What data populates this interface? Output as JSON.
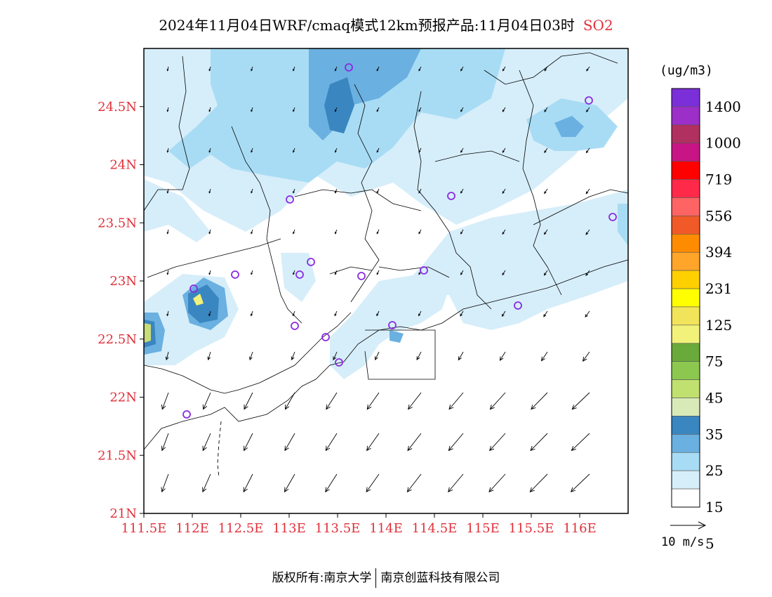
{
  "title": {
    "main": "2024年11月04日WRF/cmaq模式12km预报产品:11月04日03时",
    "species": "SO2"
  },
  "map": {
    "lat_ticks": [
      "24.5N",
      "24N",
      "23.5N",
      "23N",
      "22.5N",
      "22N",
      "21.5N",
      "21N"
    ],
    "lon_ticks": [
      "111.5E",
      "112E",
      "112.5E",
      "113E",
      "113.5E",
      "114E",
      "114.5E",
      "115E",
      "115.5E",
      "116E"
    ],
    "lat_range": [
      21.0,
      25.0
    ],
    "lon_range": [
      111.5,
      116.5
    ],
    "axis_label_color": "#e0303a",
    "stations_marker_color": "#8a2be2"
  },
  "legend": {
    "unit": "(ug/m3)",
    "levels": [
      "1400",
      "1000",
      "719",
      "556",
      "394",
      "231",
      "125",
      "75",
      "45",
      "35",
      "25",
      "15",
      "5"
    ],
    "colors": [
      "#7b2fd8",
      "#9b2fc8",
      "#b03060",
      "#c71585",
      "#ff0000",
      "#ff2a4a",
      "#ff6464",
      "#f05a28",
      "#ff8c00",
      "#ffa52a",
      "#ffd000",
      "#ffff00",
      "#f2e45a",
      "#f2f27a",
      "#6aaa3a",
      "#8cc850",
      "#c0e070",
      "#d8eab8",
      "#3a86c0",
      "#6ab0e0",
      "#a8dcf4",
      "#d6eefa",
      "#ffffff"
    ]
  },
  "wind_reference": {
    "label": "10 m/s"
  },
  "footer": {
    "left": "版权所有:南京大学",
    "right": "南京创蓝科技有限公司"
  }
}
